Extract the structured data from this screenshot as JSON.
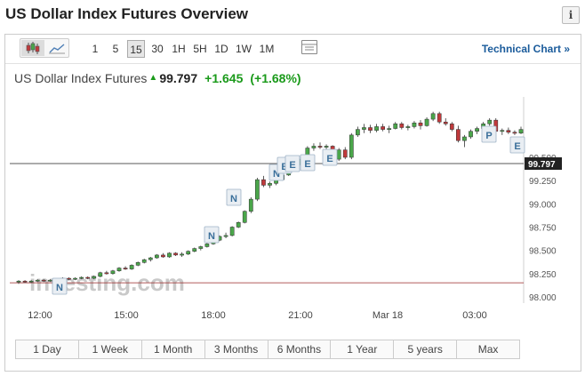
{
  "page": {
    "title": "US Dollar Index Futures Overview",
    "info_icon": "i"
  },
  "toolbar": {
    "chart_type_icons": [
      "candlestick-icon",
      "area-chart-icon"
    ],
    "intervals": [
      "1",
      "5",
      "15",
      "30",
      "1H",
      "5H",
      "1D",
      "1W",
      "1M"
    ],
    "selected_interval": "15",
    "table_icon": "table-icon",
    "technical_chart_label": "Technical Chart »"
  },
  "quote": {
    "name": "US Dollar Index Futures",
    "direction_arrow": "▲",
    "last": "99.797",
    "change": "+1.645",
    "change_pct": "(+1.68%)",
    "up_color": "#1a9a1a"
  },
  "chart_data": {
    "type": "candlestick",
    "y_ticks": [
      "99.500",
      "99.250",
      "99.000",
      "98.750",
      "98.500",
      "98.250",
      "98.000"
    ],
    "y_range": [
      98.0,
      99.9
    ],
    "x_ticks": [
      "12:00",
      "15:00",
      "18:00",
      "21:00",
      "Mar 18",
      "03:00"
    ],
    "current_price_label": "99.797",
    "current_price": 99.797,
    "reference_price": 98.152,
    "watermark": "investing.com",
    "up_color": "#4aa64a",
    "down_color": "#c0393b",
    "event_markers": [
      {
        "label": "N",
        "x_time": "13:00"
      },
      {
        "label": "N",
        "x_time": "18:00"
      },
      {
        "label": "N",
        "x_time": "18:30"
      },
      {
        "label": "N",
        "x_time": "20:30"
      },
      {
        "label": "E",
        "x_time": "20:45"
      },
      {
        "label": "E",
        "x_time": "21:00"
      },
      {
        "label": "E",
        "x_time": "21:15"
      },
      {
        "label": "E",
        "x_time": "22:00"
      },
      {
        "label": "P",
        "x_time": "03:30"
      },
      {
        "label": "E",
        "x_time": "04:30"
      }
    ],
    "candles": [
      {
        "o": 98.16,
        "h": 98.18,
        "l": 98.14,
        "c": 98.17
      },
      {
        "o": 98.17,
        "h": 98.18,
        "l": 98.15,
        "c": 98.16
      },
      {
        "o": 98.16,
        "h": 98.18,
        "l": 98.15,
        "c": 98.17
      },
      {
        "o": 98.17,
        "h": 98.19,
        "l": 98.16,
        "c": 98.18
      },
      {
        "o": 98.18,
        "h": 98.19,
        "l": 98.16,
        "c": 98.17
      },
      {
        "o": 98.17,
        "h": 98.19,
        "l": 98.16,
        "c": 98.18
      },
      {
        "o": 98.18,
        "h": 98.2,
        "l": 98.17,
        "c": 98.19
      },
      {
        "o": 98.19,
        "h": 98.21,
        "l": 98.18,
        "c": 98.2
      },
      {
        "o": 98.2,
        "h": 98.21,
        "l": 98.18,
        "c": 98.19
      },
      {
        "o": 98.19,
        "h": 98.21,
        "l": 98.18,
        "c": 98.2
      },
      {
        "o": 98.2,
        "h": 98.22,
        "l": 98.19,
        "c": 98.21
      },
      {
        "o": 98.21,
        "h": 98.22,
        "l": 98.19,
        "c": 98.2
      },
      {
        "o": 98.2,
        "h": 98.23,
        "l": 98.19,
        "c": 98.22
      },
      {
        "o": 98.22,
        "h": 98.27,
        "l": 98.21,
        "c": 98.26
      },
      {
        "o": 98.26,
        "h": 98.28,
        "l": 98.24,
        "c": 98.25
      },
      {
        "o": 98.25,
        "h": 98.29,
        "l": 98.24,
        "c": 98.28
      },
      {
        "o": 98.28,
        "h": 98.32,
        "l": 98.27,
        "c": 98.31
      },
      {
        "o": 98.31,
        "h": 98.33,
        "l": 98.29,
        "c": 98.3
      },
      {
        "o": 98.3,
        "h": 98.35,
        "l": 98.29,
        "c": 98.34
      },
      {
        "o": 98.34,
        "h": 98.38,
        "l": 98.33,
        "c": 98.37
      },
      {
        "o": 98.37,
        "h": 98.41,
        "l": 98.36,
        "c": 98.4
      },
      {
        "o": 98.4,
        "h": 98.43,
        "l": 98.38,
        "c": 98.42
      },
      {
        "o": 98.42,
        "h": 98.46,
        "l": 98.41,
        "c": 98.45
      },
      {
        "o": 98.45,
        "h": 98.47,
        "l": 98.42,
        "c": 98.43
      },
      {
        "o": 98.43,
        "h": 98.48,
        "l": 98.42,
        "c": 98.47
      },
      {
        "o": 98.47,
        "h": 98.48,
        "l": 98.44,
        "c": 98.45
      },
      {
        "o": 98.45,
        "h": 98.48,
        "l": 98.43,
        "c": 98.46
      },
      {
        "o": 98.46,
        "h": 98.5,
        "l": 98.45,
        "c": 98.49
      },
      {
        "o": 98.49,
        "h": 98.53,
        "l": 98.48,
        "c": 98.52
      },
      {
        "o": 98.52,
        "h": 98.55,
        "l": 98.5,
        "c": 98.54
      },
      {
        "o": 98.54,
        "h": 98.58,
        "l": 98.53,
        "c": 98.57
      },
      {
        "o": 98.57,
        "h": 98.62,
        "l": 98.56,
        "c": 98.61
      },
      {
        "o": 98.61,
        "h": 98.66,
        "l": 98.6,
        "c": 98.65
      },
      {
        "o": 98.65,
        "h": 98.69,
        "l": 98.63,
        "c": 98.66
      },
      {
        "o": 98.66,
        "h": 98.76,
        "l": 98.65,
        "c": 98.75
      },
      {
        "o": 98.75,
        "h": 98.81,
        "l": 98.74,
        "c": 98.8
      },
      {
        "o": 98.8,
        "h": 98.93,
        "l": 98.79,
        "c": 98.92
      },
      {
        "o": 98.92,
        "h": 99.07,
        "l": 98.9,
        "c": 99.05
      },
      {
        "o": 99.05,
        "h": 99.28,
        "l": 99.03,
        "c": 99.26
      },
      {
        "o": 99.26,
        "h": 99.3,
        "l": 99.18,
        "c": 99.2
      },
      {
        "o": 99.2,
        "h": 99.24,
        "l": 99.17,
        "c": 99.22
      },
      {
        "o": 99.22,
        "h": 99.28,
        "l": 99.2,
        "c": 99.26
      },
      {
        "o": 99.26,
        "h": 99.33,
        "l": 99.25,
        "c": 99.31
      },
      {
        "o": 99.31,
        "h": 99.4,
        "l": 99.3,
        "c": 99.38
      },
      {
        "o": 99.38,
        "h": 99.45,
        "l": 99.36,
        "c": 99.42
      },
      {
        "o": 99.42,
        "h": 99.5,
        "l": 99.4,
        "c": 99.48
      },
      {
        "o": 99.48,
        "h": 99.62,
        "l": 99.47,
        "c": 99.6
      },
      {
        "o": 99.6,
        "h": 99.65,
        "l": 99.57,
        "c": 99.62
      },
      {
        "o": 99.62,
        "h": 99.66,
        "l": 99.59,
        "c": 99.61
      },
      {
        "o": 99.61,
        "h": 99.64,
        "l": 99.58,
        "c": 99.62
      },
      {
        "o": 99.62,
        "h": 99.63,
        "l": 99.45,
        "c": 99.48
      },
      {
        "o": 99.48,
        "h": 99.6,
        "l": 99.46,
        "c": 99.58
      },
      {
        "o": 99.58,
        "h": 99.61,
        "l": 99.48,
        "c": 99.5
      },
      {
        "o": 99.5,
        "h": 99.76,
        "l": 99.48,
        "c": 99.74
      },
      {
        "o": 99.74,
        "h": 99.83,
        "l": 99.72,
        "c": 99.8
      },
      {
        "o": 99.8,
        "h": 99.86,
        "l": 99.76,
        "c": 99.82
      },
      {
        "o": 99.82,
        "h": 99.85,
        "l": 99.76,
        "c": 99.79
      },
      {
        "o": 99.79,
        "h": 99.86,
        "l": 99.77,
        "c": 99.83
      },
      {
        "o": 99.83,
        "h": 99.86,
        "l": 99.78,
        "c": 99.8
      },
      {
        "o": 99.8,
        "h": 99.84,
        "l": 99.76,
        "c": 99.81
      },
      {
        "o": 99.81,
        "h": 99.88,
        "l": 99.8,
        "c": 99.86
      },
      {
        "o": 99.86,
        "h": 99.88,
        "l": 99.8,
        "c": 99.82
      },
      {
        "o": 99.82,
        "h": 99.85,
        "l": 99.79,
        "c": 99.83
      },
      {
        "o": 99.83,
        "h": 99.89,
        "l": 99.81,
        "c": 99.87
      },
      {
        "o": 99.87,
        "h": 99.9,
        "l": 99.8,
        "c": 99.84
      },
      {
        "o": 99.84,
        "h": 99.93,
        "l": 99.83,
        "c": 99.91
      },
      {
        "o": 99.91,
        "h": 99.99,
        "l": 99.89,
        "c": 99.97
      },
      {
        "o": 99.97,
        "h": 99.99,
        "l": 99.86,
        "c": 99.88
      },
      {
        "o": 99.88,
        "h": 99.92,
        "l": 99.84,
        "c": 99.86
      },
      {
        "o": 99.86,
        "h": 99.88,
        "l": 99.78,
        "c": 99.8
      },
      {
        "o": 99.8,
        "h": 99.84,
        "l": 99.66,
        "c": 99.68
      },
      {
        "o": 99.68,
        "h": 99.74,
        "l": 99.61,
        "c": 99.72
      },
      {
        "o": 99.72,
        "h": 99.8,
        "l": 99.7,
        "c": 99.78
      },
      {
        "o": 99.78,
        "h": 99.83,
        "l": 99.75,
        "c": 99.81
      },
      {
        "o": 99.81,
        "h": 99.88,
        "l": 99.79,
        "c": 99.86
      },
      {
        "o": 99.86,
        "h": 99.92,
        "l": 99.84,
        "c": 99.9
      },
      {
        "o": 99.9,
        "h": 99.92,
        "l": 99.76,
        "c": 99.78
      },
      {
        "o": 99.78,
        "h": 99.81,
        "l": 99.74,
        "c": 99.79
      },
      {
        "o": 99.79,
        "h": 99.82,
        "l": 99.75,
        "c": 99.77
      },
      {
        "o": 99.77,
        "h": 99.79,
        "l": 99.74,
        "c": 99.76
      },
      {
        "o": 99.76,
        "h": 99.83,
        "l": 99.75,
        "c": 99.8
      }
    ]
  },
  "periods": [
    "1 Day",
    "1 Week",
    "1 Month",
    "3 Months",
    "6 Months",
    "1 Year",
    "5 years",
    "Max"
  ]
}
